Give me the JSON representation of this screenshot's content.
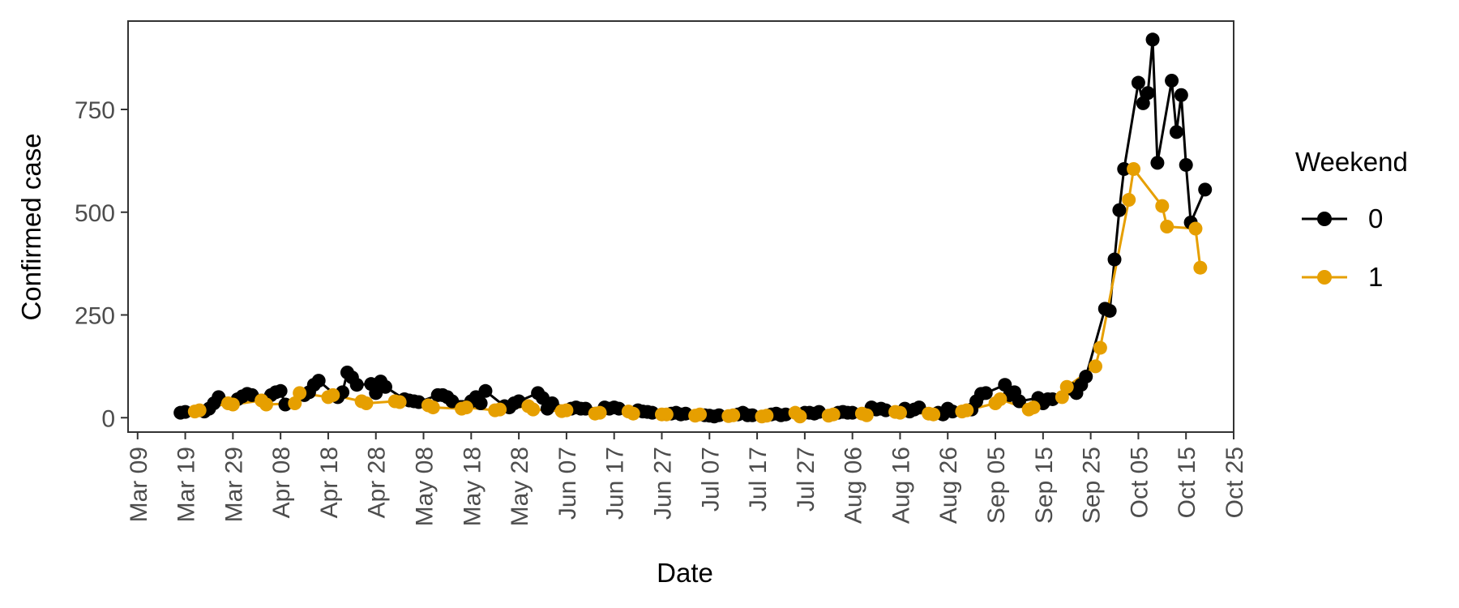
{
  "chart_data": {
    "type": "line",
    "xlabel": "Date",
    "ylabel": "Confirmed case",
    "x_type": "date",
    "xlim": [
      "2020-03-07",
      "2020-10-25"
    ],
    "ylim": [
      -35,
      965
    ],
    "x_ticks": [
      "2020-03-09",
      "2020-03-19",
      "2020-03-29",
      "2020-04-08",
      "2020-04-18",
      "2020-04-28",
      "2020-05-08",
      "2020-05-18",
      "2020-05-28",
      "2020-06-07",
      "2020-06-17",
      "2020-06-27",
      "2020-07-07",
      "2020-07-17",
      "2020-07-27",
      "2020-08-06",
      "2020-08-16",
      "2020-08-26",
      "2020-09-05",
      "2020-09-15",
      "2020-09-25",
      "2020-10-05",
      "2020-10-15",
      "2020-10-25"
    ],
    "x_tick_labels": [
      "Mar 09",
      "Mar 19",
      "Mar 29",
      "Apr 08",
      "Apr 18",
      "Apr 28",
      "May 08",
      "May 18",
      "May 28",
      "Jun 07",
      "Jun 17",
      "Jun 27",
      "Jul 07",
      "Jul 17",
      "Jul 27",
      "Aug 06",
      "Aug 16",
      "Aug 26",
      "Sep 05",
      "Sep 15",
      "Sep 25",
      "Oct 05",
      "Oct 15",
      "Oct 25"
    ],
    "y_ticks": [
      0,
      250,
      500,
      750
    ],
    "y_tick_labels": [
      "0",
      "250",
      "500",
      "750"
    ],
    "grid": false,
    "legend": {
      "title": "Weekend",
      "position": "right",
      "entries": [
        {
          "label": "0",
          "color": "#000000"
        },
        {
          "label": "1",
          "color": "#E69F00"
        }
      ]
    },
    "series": [
      {
        "name": "0",
        "color": "#000000",
        "points": [
          [
            "2020-03-18",
            12
          ],
          [
            "2020-03-19",
            14
          ],
          [
            "2020-03-23",
            15
          ],
          [
            "2020-03-24",
            22
          ],
          [
            "2020-03-25",
            35
          ],
          [
            "2020-03-26",
            50
          ],
          [
            "2020-03-30",
            45
          ],
          [
            "2020-03-31",
            52
          ],
          [
            "2020-04-01",
            58
          ],
          [
            "2020-04-02",
            55
          ],
          [
            "2020-04-06",
            55
          ],
          [
            "2020-04-07",
            62
          ],
          [
            "2020-04-08",
            65
          ],
          [
            "2020-04-09",
            32
          ],
          [
            "2020-04-13",
            55
          ],
          [
            "2020-04-14",
            62
          ],
          [
            "2020-04-15",
            80
          ],
          [
            "2020-04-16",
            90
          ],
          [
            "2020-04-20",
            50
          ],
          [
            "2020-04-21",
            62
          ],
          [
            "2020-04-22",
            110
          ],
          [
            "2020-04-23",
            98
          ],
          [
            "2020-04-24",
            80
          ],
          [
            "2020-04-27",
            82
          ],
          [
            "2020-04-28",
            60
          ],
          [
            "2020-04-29",
            88
          ],
          [
            "2020-04-30",
            75
          ],
          [
            "2020-05-04",
            45
          ],
          [
            "2020-05-05",
            42
          ],
          [
            "2020-05-06",
            40
          ],
          [
            "2020-05-07",
            38
          ],
          [
            "2020-05-11",
            55
          ],
          [
            "2020-05-12",
            55
          ],
          [
            "2020-05-13",
            50
          ],
          [
            "2020-05-14",
            40
          ],
          [
            "2020-05-18",
            40
          ],
          [
            "2020-05-19",
            50
          ],
          [
            "2020-05-20",
            35
          ],
          [
            "2020-05-21",
            65
          ],
          [
            "2020-05-25",
            28
          ],
          [
            "2020-05-26",
            25
          ],
          [
            "2020-05-27",
            35
          ],
          [
            "2020-05-28",
            40
          ],
          [
            "2020-06-01",
            60
          ],
          [
            "2020-06-02",
            48
          ],
          [
            "2020-06-03",
            22
          ],
          [
            "2020-06-04",
            35
          ],
          [
            "2020-06-08",
            22
          ],
          [
            "2020-06-09",
            25
          ],
          [
            "2020-06-10",
            22
          ],
          [
            "2020-06-11",
            22
          ],
          [
            "2020-06-15",
            25
          ],
          [
            "2020-06-16",
            22
          ],
          [
            "2020-06-17",
            25
          ],
          [
            "2020-06-18",
            22
          ],
          [
            "2020-06-22",
            18
          ],
          [
            "2020-06-23",
            15
          ],
          [
            "2020-06-24",
            14
          ],
          [
            "2020-06-25",
            12
          ],
          [
            "2020-06-29",
            10
          ],
          [
            "2020-06-30",
            12
          ],
          [
            "2020-07-01",
            8
          ],
          [
            "2020-07-02",
            10
          ],
          [
            "2020-07-06",
            6
          ],
          [
            "2020-07-07",
            5
          ],
          [
            "2020-07-08",
            3
          ],
          [
            "2020-07-09",
            6
          ],
          [
            "2020-07-13",
            8
          ],
          [
            "2020-07-14",
            12
          ],
          [
            "2020-07-15",
            6
          ],
          [
            "2020-07-16",
            6
          ],
          [
            "2020-07-20",
            8
          ],
          [
            "2020-07-21",
            10
          ],
          [
            "2020-07-22",
            6
          ],
          [
            "2020-07-23",
            8
          ],
          [
            "2020-07-27",
            12
          ],
          [
            "2020-07-28",
            12
          ],
          [
            "2020-07-29",
            10
          ],
          [
            "2020-07-30",
            14
          ],
          [
            "2020-08-03",
            12
          ],
          [
            "2020-08-04",
            14
          ],
          [
            "2020-08-05",
            12
          ],
          [
            "2020-08-06",
            12
          ],
          [
            "2020-08-10",
            25
          ],
          [
            "2020-08-11",
            20
          ],
          [
            "2020-08-12",
            22
          ],
          [
            "2020-08-13",
            18
          ],
          [
            "2020-08-17",
            22
          ],
          [
            "2020-08-18",
            15
          ],
          [
            "2020-08-19",
            20
          ],
          [
            "2020-08-20",
            25
          ],
          [
            "2020-08-24",
            12
          ],
          [
            "2020-08-25",
            8
          ],
          [
            "2020-08-26",
            22
          ],
          [
            "2020-08-27",
            15
          ],
          [
            "2020-08-31",
            20
          ],
          [
            "2020-09-01",
            40
          ],
          [
            "2020-09-02",
            58
          ],
          [
            "2020-09-03",
            60
          ],
          [
            "2020-09-07",
            80
          ],
          [
            "2020-09-08",
            55
          ],
          [
            "2020-09-09",
            62
          ],
          [
            "2020-09-10",
            40
          ],
          [
            "2020-09-14",
            48
          ],
          [
            "2020-09-15",
            35
          ],
          [
            "2020-09-16",
            45
          ],
          [
            "2020-09-17",
            45
          ],
          [
            "2020-09-21",
            70
          ],
          [
            "2020-09-22",
            60
          ],
          [
            "2020-09-23",
            80
          ],
          [
            "2020-09-24",
            100
          ],
          [
            "2020-09-28",
            265
          ],
          [
            "2020-09-29",
            260
          ],
          [
            "2020-09-30",
            385
          ],
          [
            "2020-10-01",
            505
          ],
          [
            "2020-10-02",
            605
          ],
          [
            "2020-10-05",
            815
          ],
          [
            "2020-10-06",
            765
          ],
          [
            "2020-10-07",
            790
          ],
          [
            "2020-10-08",
            920
          ],
          [
            "2020-10-09",
            620
          ],
          [
            "2020-10-12",
            820
          ],
          [
            "2020-10-13",
            695
          ],
          [
            "2020-10-14",
            785
          ],
          [
            "2020-10-15",
            615
          ],
          [
            "2020-10-16",
            475
          ],
          [
            "2020-10-19",
            555
          ]
        ]
      },
      {
        "name": "1",
        "color": "#E69F00",
        "points": [
          [
            "2020-03-21",
            15
          ],
          [
            "2020-03-22",
            18
          ],
          [
            "2020-03-28",
            35
          ],
          [
            "2020-03-29",
            32
          ],
          [
            "2020-04-04",
            42
          ],
          [
            "2020-04-05",
            32
          ],
          [
            "2020-04-11",
            35
          ],
          [
            "2020-04-12",
            60
          ],
          [
            "2020-04-18",
            50
          ],
          [
            "2020-04-19",
            55
          ],
          [
            "2020-04-25",
            40
          ],
          [
            "2020-04-26",
            35
          ],
          [
            "2020-05-02",
            40
          ],
          [
            "2020-05-03",
            38
          ],
          [
            "2020-05-09",
            30
          ],
          [
            "2020-05-10",
            25
          ],
          [
            "2020-05-16",
            22
          ],
          [
            "2020-05-17",
            25
          ],
          [
            "2020-05-23",
            18
          ],
          [
            "2020-05-24",
            20
          ],
          [
            "2020-05-30",
            28
          ],
          [
            "2020-05-31",
            20
          ],
          [
            "2020-06-06",
            16
          ],
          [
            "2020-06-07",
            18
          ],
          [
            "2020-06-13",
            10
          ],
          [
            "2020-06-14",
            12
          ],
          [
            "2020-06-20",
            15
          ],
          [
            "2020-06-21",
            10
          ],
          [
            "2020-06-27",
            8
          ],
          [
            "2020-06-28",
            8
          ],
          [
            "2020-07-04",
            5
          ],
          [
            "2020-07-05",
            8
          ],
          [
            "2020-07-11",
            4
          ],
          [
            "2020-07-12",
            6
          ],
          [
            "2020-07-18",
            3
          ],
          [
            "2020-07-19",
            5
          ],
          [
            "2020-07-25",
            12
          ],
          [
            "2020-07-26",
            3
          ],
          [
            "2020-08-01",
            5
          ],
          [
            "2020-08-02",
            8
          ],
          [
            "2020-08-08",
            10
          ],
          [
            "2020-08-09",
            6
          ],
          [
            "2020-08-15",
            14
          ],
          [
            "2020-08-16",
            12
          ],
          [
            "2020-08-22",
            10
          ],
          [
            "2020-08-23",
            8
          ],
          [
            "2020-08-29",
            15
          ],
          [
            "2020-08-30",
            18
          ],
          [
            "2020-09-05",
            35
          ],
          [
            "2020-09-06",
            45
          ],
          [
            "2020-09-12",
            20
          ],
          [
            "2020-09-13",
            25
          ],
          [
            "2020-09-19",
            50
          ],
          [
            "2020-09-20",
            75
          ],
          [
            "2020-09-26",
            125
          ],
          [
            "2020-09-27",
            170
          ],
          [
            "2020-10-03",
            530
          ],
          [
            "2020-10-04",
            605
          ],
          [
            "2020-10-10",
            515
          ],
          [
            "2020-10-11",
            465
          ],
          [
            "2020-10-17",
            460
          ],
          [
            "2020-10-18",
            365
          ]
        ]
      }
    ]
  }
}
